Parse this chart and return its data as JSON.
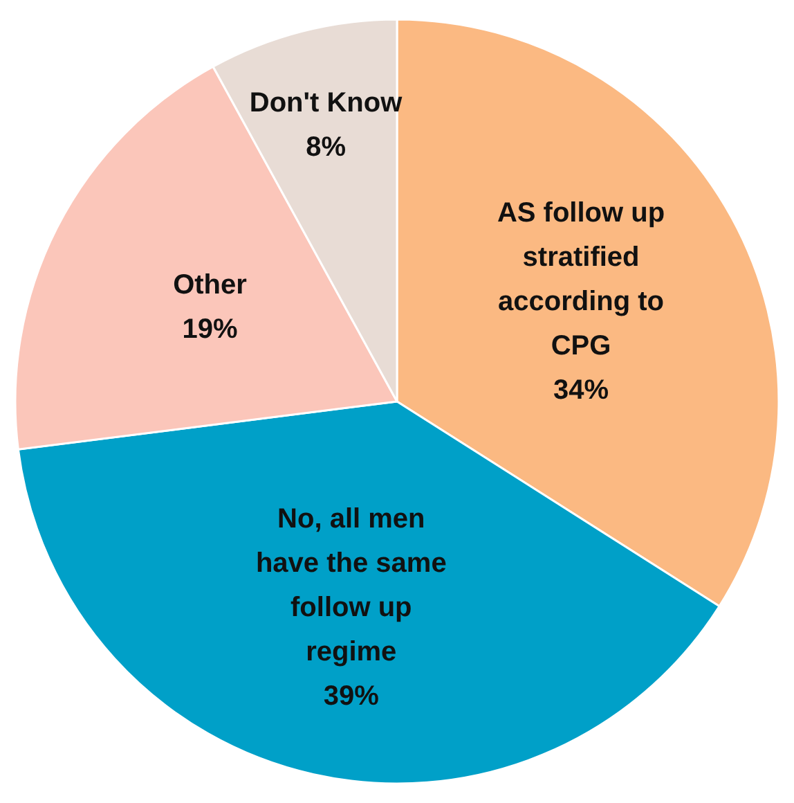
{
  "chart_data": {
    "type": "pie",
    "categories": [
      "AS follow up stratified according to CPG",
      "No, all men have the same follow up regime",
      "Other",
      "Don't Know"
    ],
    "values": [
      34,
      39,
      19,
      8
    ],
    "value_labels": [
      "34%",
      "39%",
      "19%",
      "8%"
    ],
    "colors": [
      "#fbb982",
      "#00a0c8",
      "#fbc6ba",
      "#e8dcd5"
    ],
    "data_labels": true
  }
}
